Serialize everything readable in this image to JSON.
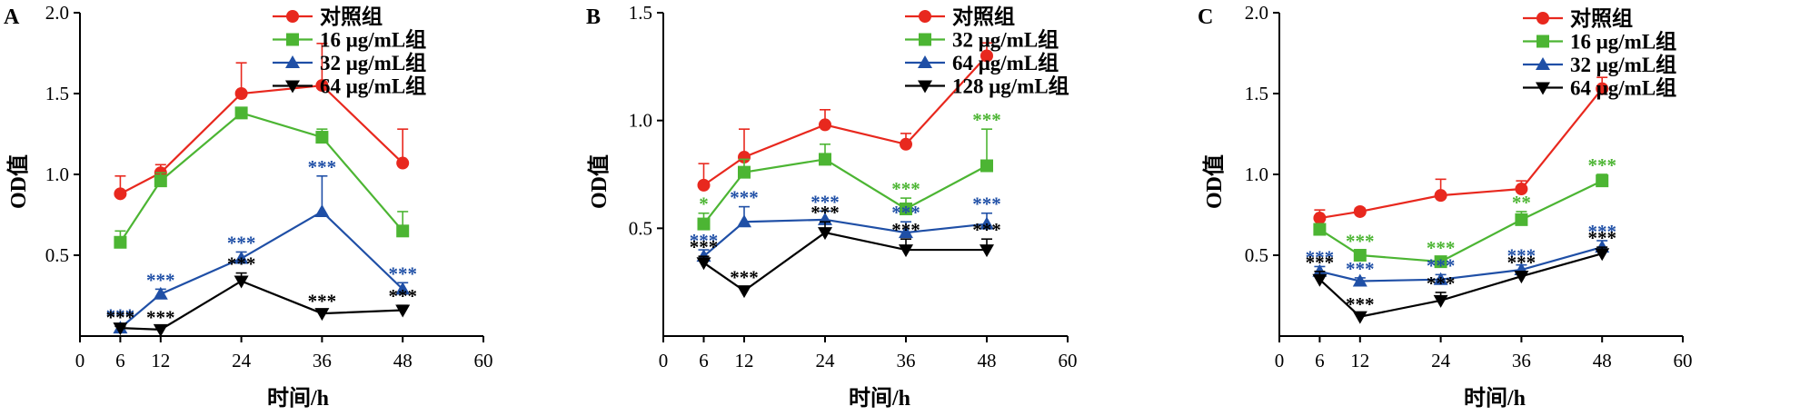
{
  "colors": {
    "control": "#e8281e",
    "green": "#4cb533",
    "blue": "#1f4fa6",
    "black": "#000000"
  },
  "chart_data": [
    {
      "type": "line",
      "panel_label": "A",
      "xlabel": "时间/h",
      "ylabel": "OD值",
      "xlim": [
        0,
        60
      ],
      "ylim": [
        0,
        2.0
      ],
      "x_ticks": [
        0,
        6,
        12,
        24,
        36,
        48,
        60
      ],
      "y_ticks": [
        0.5,
        1.0,
        1.5,
        2.0
      ],
      "y_tick_labels": [
        "0.5",
        "1.0",
        "1.5",
        "2.0"
      ],
      "legend": "top-right",
      "series": [
        {
          "name": "对照组",
          "color": "#e8281e",
          "marker": "circle",
          "x": [
            6,
            12,
            24,
            36,
            48
          ],
          "y": [
            0.88,
            1.01,
            1.5,
            1.55,
            1.07
          ],
          "err": [
            0.11,
            0.05,
            0.19,
            0.26,
            0.21
          ],
          "sig": [
            "",
            "",
            "",
            "",
            ""
          ]
        },
        {
          "name": "16 μg/mL组",
          "color": "#4cb533",
          "marker": "square",
          "x": [
            6,
            12,
            24,
            36,
            48
          ],
          "y": [
            0.58,
            0.96,
            1.38,
            1.23,
            0.65
          ],
          "err": [
            0.07,
            0.05,
            0.03,
            0.05,
            0.12
          ],
          "sig": [
            "",
            "",
            "",
            "",
            ""
          ]
        },
        {
          "name": "32 μg/mL组",
          "color": "#1f4fa6",
          "marker": "triangle-up",
          "x": [
            6,
            12,
            24,
            36,
            48
          ],
          "y": [
            0.05,
            0.26,
            0.48,
            0.77,
            0.29
          ],
          "err": [
            0.02,
            0.03,
            0.04,
            0.22,
            0.04
          ],
          "sig": [
            "***",
            "***",
            "***",
            "***",
            "***"
          ]
        },
        {
          "name": "64 μg/mL组",
          "color": "#000000",
          "marker": "triangle-down",
          "x": [
            6,
            12,
            24,
            36,
            48
          ],
          "y": [
            0.05,
            0.04,
            0.34,
            0.14,
            0.16
          ],
          "err": [
            0.01,
            0.02,
            0.05,
            0.02,
            0.03
          ],
          "sig": [
            "***",
            "***",
            "***",
            "***",
            "***"
          ]
        }
      ]
    },
    {
      "type": "line",
      "panel_label": "B",
      "xlabel": "时间/h",
      "ylabel": "OD值",
      "xlim": [
        0,
        60
      ],
      "ylim": [
        0,
        1.5
      ],
      "x_ticks": [
        0,
        6,
        12,
        24,
        36,
        48,
        60
      ],
      "y_ticks": [
        0.5,
        1.0,
        1.5
      ],
      "y_tick_labels": [
        "0.5",
        "1.0",
        "1.5"
      ],
      "legend": "top-right",
      "series": [
        {
          "name": "对照组",
          "color": "#e8281e",
          "marker": "circle",
          "x": [
            6,
            12,
            24,
            36,
            48
          ],
          "y": [
            0.7,
            0.83,
            0.98,
            0.89,
            1.3
          ],
          "err": [
            0.1,
            0.13,
            0.07,
            0.05,
            0.06
          ],
          "sig": [
            "",
            "",
            "",
            "",
            ""
          ]
        },
        {
          "name": "32 μg/mL组",
          "color": "#4cb533",
          "marker": "square",
          "x": [
            6,
            12,
            24,
            36,
            48
          ],
          "y": [
            0.52,
            0.76,
            0.82,
            0.59,
            0.79
          ],
          "err": [
            0.05,
            0.06,
            0.07,
            0.05,
            0.17
          ],
          "sig": [
            "*",
            "",
            "",
            "***",
            "***"
          ]
        },
        {
          "name": "64 μg/mL组",
          "color": "#1f4fa6",
          "marker": "triangle-up",
          "x": [
            6,
            12,
            24,
            36,
            48
          ],
          "y": [
            0.37,
            0.53,
            0.54,
            0.48,
            0.52
          ],
          "err": [
            0.03,
            0.07,
            0.04,
            0.05,
            0.05
          ],
          "sig": [
            "***",
            "***",
            "***",
            "***",
            "***"
          ]
        },
        {
          "name": "128 μg/mL组",
          "color": "#000000",
          "marker": "triangle-down",
          "x": [
            6,
            12,
            24,
            36,
            48
          ],
          "y": [
            0.34,
            0.21,
            0.48,
            0.4,
            0.4
          ],
          "err": [
            0.03,
            0.02,
            0.05,
            0.05,
            0.05
          ],
          "sig": [
            "***",
            "***",
            "***",
            "***",
            "***"
          ]
        }
      ]
    },
    {
      "type": "line",
      "panel_label": "C",
      "xlabel": "时间/h",
      "ylabel": "OD值",
      "xlim": [
        0,
        60
      ],
      "ylim": [
        0,
        2.0
      ],
      "x_ticks": [
        0,
        6,
        12,
        24,
        36,
        48,
        60
      ],
      "y_ticks": [
        0.5,
        1.0,
        1.5,
        2.0
      ],
      "y_tick_labels": [
        "0.5",
        "1.0",
        "1.5",
        "2.0"
      ],
      "legend": "top-right",
      "series": [
        {
          "name": "对照组",
          "color": "#e8281e",
          "marker": "circle",
          "x": [
            6,
            12,
            24,
            36,
            48
          ],
          "y": [
            0.73,
            0.77,
            0.87,
            0.91,
            1.53
          ],
          "err": [
            0.05,
            0.02,
            0.1,
            0.05,
            0.07
          ],
          "sig": [
            "",
            "",
            "",
            "",
            ""
          ]
        },
        {
          "name": "16 μg/mL组",
          "color": "#4cb533",
          "marker": "square",
          "x": [
            6,
            12,
            24,
            36,
            48
          ],
          "y": [
            0.66,
            0.5,
            0.46,
            0.72,
            0.96
          ],
          "err": [
            0.03,
            0.03,
            0.03,
            0.05,
            0.04
          ],
          "sig": [
            "",
            "***",
            "***",
            "**",
            "***"
          ]
        },
        {
          "name": "32 μg/mL组",
          "color": "#1f4fa6",
          "marker": "triangle-up",
          "x": [
            6,
            12,
            24,
            36,
            48
          ],
          "y": [
            0.4,
            0.34,
            0.35,
            0.41,
            0.55
          ],
          "err": [
            0.03,
            0.02,
            0.03,
            0.03,
            0.04
          ],
          "sig": [
            "***",
            "***",
            "***",
            "***",
            "***"
          ]
        },
        {
          "name": "64 μg/mL组",
          "color": "#000000",
          "marker": "triangle-down",
          "x": [
            6,
            12,
            24,
            36,
            48
          ],
          "y": [
            0.35,
            0.12,
            0.22,
            0.37,
            0.51
          ],
          "err": [
            0.05,
            0.02,
            0.05,
            0.03,
            0.04
          ],
          "sig": [
            "***",
            "***",
            "***",
            "***",
            "***"
          ]
        }
      ]
    }
  ]
}
